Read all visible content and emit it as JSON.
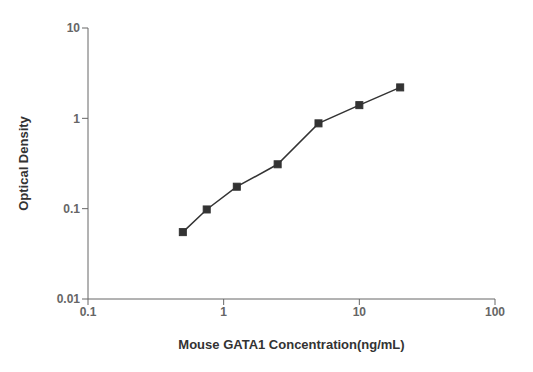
{
  "chart_data": {
    "type": "line",
    "x": [
      0.5,
      0.75,
      1.25,
      2.5,
      5.0,
      10.0,
      20.0
    ],
    "values": [
      0.055,
      0.098,
      0.175,
      0.31,
      0.88,
      1.4,
      2.2
    ],
    "xlabel": "Mouse GATA1 Concentration(ng/mL)",
    "ylabel": "Optical Density",
    "xlim": [
      0.1,
      100
    ],
    "ylim": [
      0.01,
      10
    ],
    "xticks": [
      0.1,
      1,
      10,
      100
    ],
    "yticks": [
      0.01,
      0.1,
      1,
      10
    ],
    "log": true,
    "grid": false,
    "color": "#333333",
    "marker": "square",
    "line_style": "solid"
  }
}
